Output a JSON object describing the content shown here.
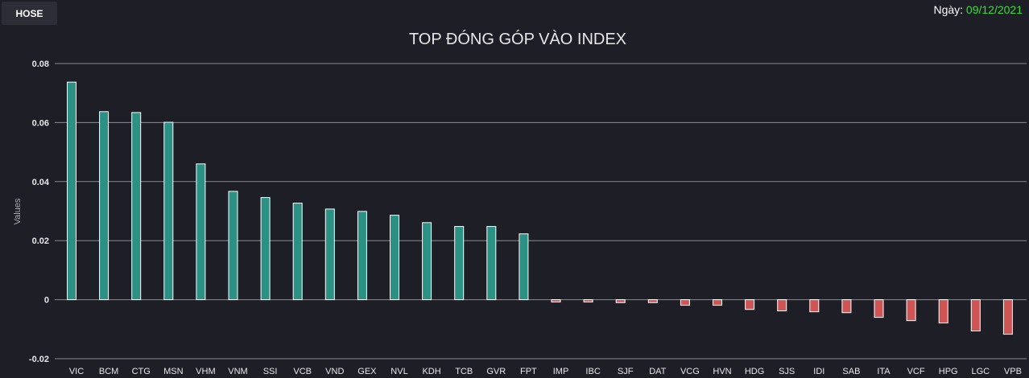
{
  "exchange_button": "HOSE",
  "date_label": "Ngày:",
  "date_value": "09/12/2021",
  "colors": {
    "positive": "#2a9184",
    "negative": "#cf5555",
    "background": "#1e1e27"
  },
  "chart_data": {
    "type": "bar",
    "title": "TOP ĐÓNG GÓP VÀO INDEX",
    "xlabel": "",
    "ylabel": "Values",
    "ylim": [
      -0.02,
      0.08
    ],
    "yticks": [
      "-0.02",
      "0",
      "0.02",
      "0.04",
      "0.06",
      "0.08"
    ],
    "grid": true,
    "categories": [
      "VIC",
      "BCM",
      "CTG",
      "MSN",
      "VHM",
      "VNM",
      "SSI",
      "VCB",
      "VND",
      "GEX",
      "NVL",
      "KDH",
      "TCB",
      "GVR",
      "FPT",
      "IMP",
      "IBC",
      "SJF",
      "DAT",
      "VCG",
      "HVN",
      "HDG",
      "SJS",
      "IDI",
      "SAB",
      "ITA",
      "VCF",
      "HPG",
      "LGC",
      "VPB"
    ],
    "values": [
      0.0737,
      0.0637,
      0.0634,
      0.0601,
      0.046,
      0.0367,
      0.0346,
      0.0327,
      0.0307,
      0.0299,
      0.0286,
      0.0261,
      0.0248,
      0.0248,
      0.0223,
      -0.0008,
      -0.0008,
      -0.001,
      -0.001,
      -0.0019,
      -0.0019,
      -0.0033,
      -0.0038,
      -0.0041,
      -0.0044,
      -0.006,
      -0.0071,
      -0.0079,
      -0.0106,
      -0.0117
    ]
  }
}
